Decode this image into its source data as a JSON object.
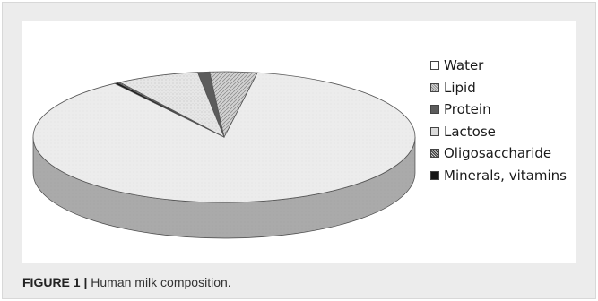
{
  "chart_data": {
    "type": "pie",
    "style": "3d",
    "categories": [
      "Water",
      "Lipid",
      "Protein",
      "Lactose",
      "Oligosaccharide",
      "Minerals, vitamins"
    ],
    "values": [
      87.5,
      4.0,
      1.0,
      7.0,
      0.2,
      0.3
    ],
    "unit": "%",
    "legend_position": "right",
    "colors": [
      "#eaeaea",
      "#c4c4c4",
      "#5c5c5c",
      "#e2e2e2",
      "#9a9a9a",
      "#161616"
    ]
  },
  "caption": {
    "prefix": "FIGURE 1 |",
    "text": " Human milk composition."
  }
}
